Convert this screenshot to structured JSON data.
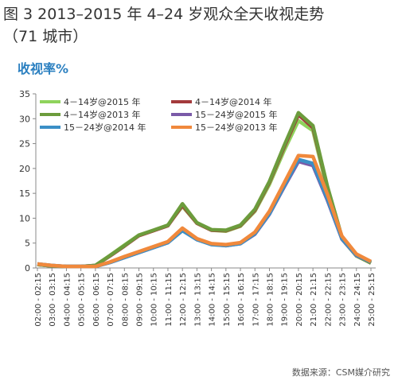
{
  "title": "图 3 2013–2015 年 4–24 岁观众全天收视走势",
  "subtitle": "（71 城市）",
  "source": "数据来源：CSM媒介研究",
  "chart_data": {
    "type": "line",
    "y_label": "收视率%",
    "categories": [
      "02:00 - 02:15",
      "03:00 - 03:15",
      "04:00 - 04:15",
      "05:00 - 05:15",
      "06:00 - 06:15",
      "07:00 - 07:15",
      "08:00 - 08:15",
      "09:00 - 09:15",
      "10:00 - 10:15",
      "11:00 - 11:15",
      "12:00 - 12:15",
      "13:00 - 13:15",
      "14:00 - 14:15",
      "15:00 - 15:15",
      "16:00 - 16:15",
      "17:00 - 17:15",
      "18:00 - 18:15",
      "19:00 - 19:15",
      "20:00 - 20:15",
      "21:00 - 21:15",
      "22:00 - 22:15",
      "23:00 - 23:15",
      "24:00 - 24:15",
      "25:00 - 25:15"
    ],
    "ylim": [
      0,
      35
    ],
    "yticks": [
      0,
      5,
      10,
      15,
      20,
      25,
      30,
      35
    ],
    "grid": false,
    "series": [
      {
        "name": "4－14岁@2015 年",
        "color": "#8fd35c",
        "values": [
          0.7,
          0.4,
          0.3,
          0.3,
          0.5,
          2.5,
          4.6,
          6.6,
          7.5,
          8.6,
          12.4,
          9,
          7.6,
          7.4,
          8.4,
          11.4,
          16.8,
          23.5,
          29.6,
          27.6,
          15.6,
          5.8,
          2.4,
          1.0
        ]
      },
      {
        "name": "4－14岁@2014 年",
        "color": "#a33a3c",
        "values": [
          0.7,
          0.4,
          0.3,
          0.3,
          0.5,
          2.4,
          4.4,
          6.5,
          7.5,
          8.5,
          12.6,
          9,
          7.6,
          7.5,
          8.5,
          11.6,
          17.2,
          24.2,
          30.8,
          28.2,
          16.2,
          6.1,
          2.5,
          1.0
        ]
      },
      {
        "name": "4－14岁@2013 年",
        "color": "#6c9c3c",
        "values": [
          0.7,
          0.4,
          0.3,
          0.3,
          0.5,
          2.5,
          4.5,
          6.6,
          7.6,
          8.6,
          12.9,
          9.1,
          7.7,
          7.6,
          8.6,
          11.8,
          17.4,
          24.5,
          31.2,
          28.6,
          16.4,
          6.2,
          2.5,
          1.0
        ]
      },
      {
        "name": "15－24岁@2015 年",
        "color": "#7a5aa8",
        "values": [
          0.8,
          0.5,
          0.3,
          0.3,
          0.3,
          1.1,
          2.1,
          3.1,
          4.1,
          5.1,
          7.6,
          5.7,
          4.8,
          4.5,
          4.9,
          6.8,
          10.8,
          16.2,
          21.4,
          20.6,
          13.6,
          5.8,
          2.5,
          1.2
        ]
      },
      {
        "name": "15－24岁@2014 年",
        "color": "#3b8fc6",
        "values": [
          0.8,
          0.5,
          0.3,
          0.3,
          0.3,
          1.1,
          2.1,
          3.1,
          4.1,
          5.1,
          7.5,
          5.7,
          4.7,
          4.5,
          4.9,
          6.9,
          10.9,
          16.4,
          21.8,
          21.0,
          13.9,
          5.9,
          2.6,
          1.2
        ]
      },
      {
        "name": "15－24岁@2013 年",
        "color": "#f0893c",
        "values": [
          0.8,
          0.5,
          0.3,
          0.3,
          0.3,
          1.2,
          2.3,
          3.3,
          4.3,
          5.3,
          8.0,
          5.9,
          4.9,
          4.7,
          5.1,
          7.2,
          11.4,
          17.0,
          22.6,
          22.4,
          14.8,
          6.4,
          2.8,
          1.3
        ]
      }
    ]
  }
}
